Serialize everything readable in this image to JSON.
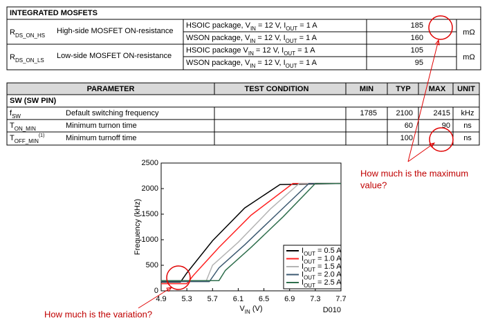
{
  "table1": {
    "title": "INTEGRATED MOSFETS",
    "rows": [
      {
        "symbol": [
          "R",
          "DS_ON_HS"
        ],
        "description": "High-side MOSFET ON-resistance",
        "unit": "mΩ",
        "conditions": [
          {
            "parts": [
              "HSOIC package, V",
              "IN",
              " = 12 V, I",
              "OUT",
              " = 1 A"
            ],
            "value": 185
          },
          {
            "parts": [
              "WSON package, V",
              "IN",
              " = 12 V, I",
              "OUT",
              " = 1 A"
            ],
            "value": 160
          }
        ]
      },
      {
        "symbol": [
          "R",
          "DS_ON_LS"
        ],
        "description": "Low-side MOSFET ON-resistance",
        "unit": "mΩ",
        "conditions": [
          {
            "parts": [
              "HSOIC package V",
              "IN",
              " = 12 V, I",
              "OUT",
              " = 1 A"
            ],
            "value": 105
          },
          {
            "parts": [
              "WSON package, V",
              "IN",
              " = 12 V, I",
              "OUT",
              " = 1 A"
            ],
            "value": 95
          }
        ]
      }
    ]
  },
  "table2": {
    "header": [
      "PARAMETER",
      "TEST CONDITION",
      "MIN",
      "TYP",
      "MAX",
      "UNIT"
    ],
    "section": "SW (SW PIN)",
    "rows": [
      {
        "symbol": [
          "f",
          "SW"
        ],
        "description": "Default switching frequency",
        "min": 1785,
        "typ": 2100,
        "max": 2415,
        "unit": "kHz"
      },
      {
        "symbol": [
          "T",
          "ON_MIN"
        ],
        "description": "Minimum turnon time",
        "typ": 60,
        "max": 90,
        "unit": "ns"
      },
      {
        "symbol": [
          "T",
          "OFF_MIN"
        ],
        "note": "(1)",
        "description": "Minimum turnoff time",
        "typ": 100,
        "unit": "ns"
      }
    ]
  },
  "chart_data": {
    "type": "line",
    "y_label": "Frequency (kHz)",
    "x_label": [
      "V",
      "IN",
      " (V)"
    ],
    "figure_id": "D010",
    "xlim": [
      4.9,
      7.7
    ],
    "xticks": [
      4.9,
      5.3,
      5.7,
      6.1,
      6.5,
      6.9,
      7.3,
      7.7
    ],
    "ylim": [
      0,
      2500
    ],
    "yticks": [
      0,
      500,
      1000,
      1500,
      2000,
      2500
    ],
    "series": [
      {
        "name": [
          "I",
          "OUT",
          " = 0.5 A"
        ],
        "color": "#000000",
        "x": [
          4.9,
          5.2,
          5.3,
          5.7,
          6.2,
          6.75,
          7.7
        ],
        "values": [
          170,
          170,
          350,
          980,
          1620,
          2080,
          2100
        ]
      },
      {
        "name": [
          "I",
          "OUT",
          " = 1.0 A"
        ],
        "color": "#ff2020",
        "x": [
          4.9,
          5.3,
          5.4,
          5.8,
          6.3,
          6.95,
          7.7
        ],
        "values": [
          140,
          140,
          300,
          850,
          1480,
          2100,
          2100
        ]
      },
      {
        "name": [
          "I",
          "OUT",
          " = 1.5 A"
        ],
        "color": "#b4b4b4",
        "x": [
          4.9,
          5.6,
          5.7,
          6.1,
          6.6,
          7.05,
          7.7
        ],
        "values": [
          190,
          190,
          500,
          950,
          1600,
          2100,
          2100
        ]
      },
      {
        "name": [
          "I",
          "OUT",
          " = 2.0 A"
        ],
        "color": "#3b5870",
        "x": [
          4.9,
          5.65,
          5.8,
          6.2,
          6.7,
          7.2,
          7.7
        ],
        "values": [
          180,
          180,
          450,
          900,
          1500,
          2100,
          2100
        ]
      },
      {
        "name": [
          "I",
          "OUT",
          " = 2.5 A"
        ],
        "color": "#2e6e4c",
        "x": [
          4.9,
          5.8,
          5.9,
          6.3,
          6.8,
          7.3,
          7.7
        ],
        "values": [
          200,
          200,
          400,
          850,
          1450,
          2100,
          2100
        ]
      }
    ]
  },
  "annotations": {
    "max_question": [
      "How much is the maximum",
      "value?"
    ],
    "variation_question": "How much is the variation?"
  }
}
